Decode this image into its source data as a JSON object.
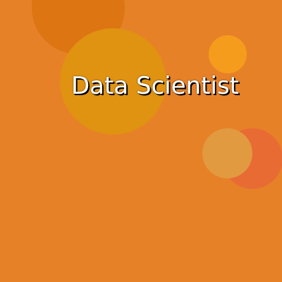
{
  "title": "Data Scientist",
  "colors": {
    "background": "#E68128",
    "circle_top_left": "#DC7512",
    "circle_center": "#E09211",
    "circle_small_right": "#F69C1D",
    "circle_red_right": "#E86B34",
    "circle_tan_right": "#E29A40",
    "title_text": "#FFFFFF",
    "title_shadow": "#000000"
  }
}
